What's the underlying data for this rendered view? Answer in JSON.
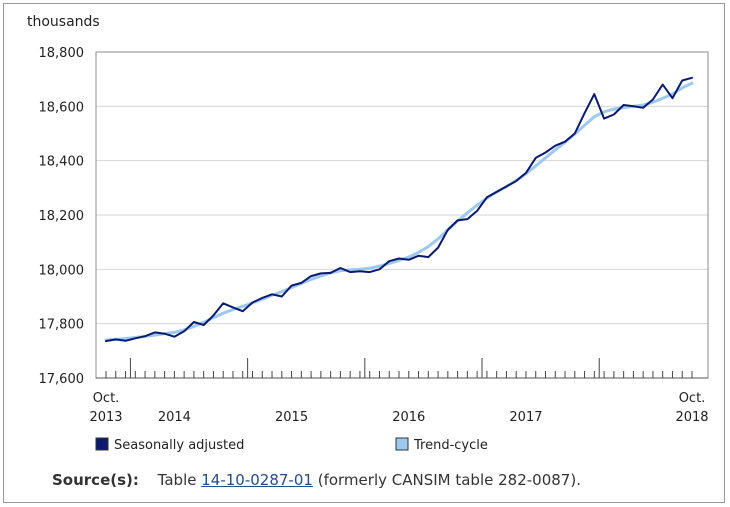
{
  "chart_data": {
    "type": "line",
    "unit_label": "thousands",
    "ylim": [
      17600,
      18800
    ],
    "y_ticks": [
      17600,
      17800,
      18000,
      18200,
      18400,
      18600,
      18800
    ],
    "y_tick_labels": [
      "17,600",
      "17,800",
      "18,000",
      "18,200",
      "18,400",
      "18,600",
      "18,800"
    ],
    "x_start": "2013-10",
    "x_end": "2018-10",
    "x_labels": [
      {
        "month_index": 0,
        "lines": [
          "Oct.",
          "2013"
        ]
      },
      {
        "month_index": 7,
        "lines": [
          "",
          "2014"
        ]
      },
      {
        "month_index": 19,
        "lines": [
          "",
          "2015"
        ]
      },
      {
        "month_index": 31,
        "lines": [
          "",
          "2016"
        ]
      },
      {
        "month_index": 43,
        "lines": [
          "",
          "2017"
        ]
      },
      {
        "month_index": 60,
        "lines": [
          "Oct.",
          "2018"
        ]
      }
    ],
    "year_boundaries": [
      2.5,
      14.5,
      26.5,
      38.5,
      50.5
    ],
    "grid": "horizontal",
    "series": [
      {
        "name": "Seasonally adjusted",
        "color": "#0c1a6e",
        "values": [
          17736,
          17742,
          17737,
          17746,
          17754,
          17768,
          17763,
          17752,
          17772,
          17806,
          17795,
          17830,
          17875,
          17860,
          17846,
          17878,
          17895,
          17908,
          17900,
          17940,
          17950,
          17975,
          17985,
          17987,
          18005,
          17990,
          17993,
          17990,
          18000,
          18030,
          18040,
          18035,
          18050,
          18045,
          18080,
          18145,
          18180,
          18185,
          18215,
          18265,
          18285,
          18305,
          18325,
          18355,
          18410,
          18430,
          18455,
          18470,
          18500,
          18575,
          18645,
          18555,
          18570,
          18605,
          18600,
          18595,
          18625,
          18680,
          18630,
          18695,
          18705
        ]
      },
      {
        "name": "Trend-cycle",
        "color": "#9ec9ef",
        "values": [
          17740,
          17742,
          17745,
          17749,
          17753,
          17758,
          17763,
          17768,
          17777,
          17790,
          17805,
          17822,
          17838,
          17852,
          17864,
          17876,
          17890,
          17904,
          17918,
          17933,
          17948,
          17963,
          17976,
          17987,
          17995,
          17998,
          18000,
          18004,
          18012,
          18022,
          18033,
          18045,
          18062,
          18084,
          18112,
          18145,
          18178,
          18208,
          18236,
          18262,
          18285,
          18305,
          18327,
          18352,
          18380,
          18410,
          18440,
          18468,
          18498,
          18530,
          18562,
          18580,
          18590,
          18595,
          18600,
          18605,
          18615,
          18630,
          18645,
          18668,
          18685
        ]
      }
    ]
  },
  "source": {
    "label": "Source(s):",
    "prefix": "Table",
    "link_text": "14-10-0287-01",
    "suffix": "(formerly CANSIM table 282-0087)."
  }
}
